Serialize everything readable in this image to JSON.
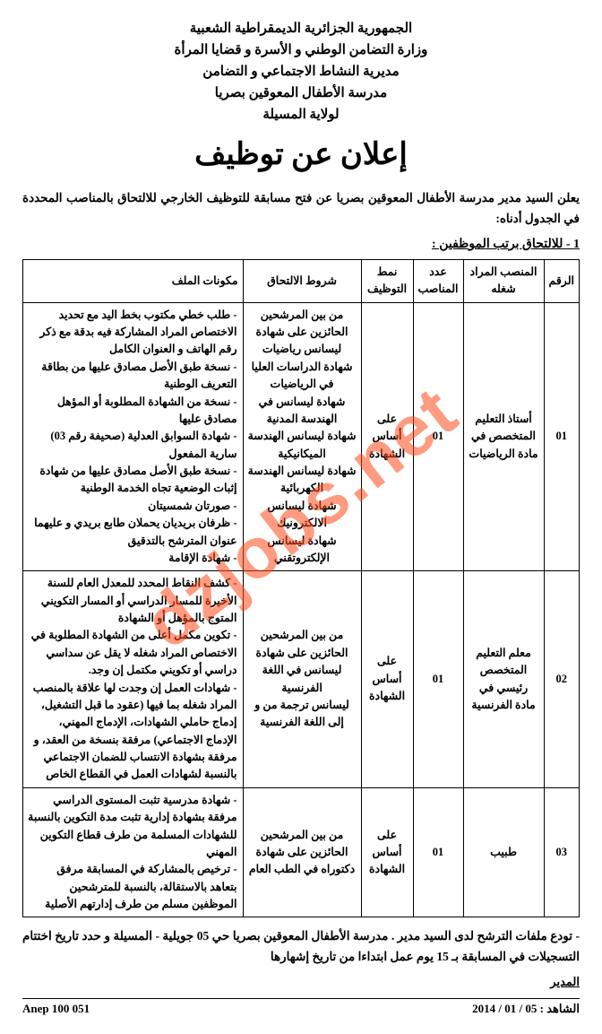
{
  "header": {
    "line1": "الجمهورية الجزائرية الديمقراطية الشعبية",
    "line2": "وزارة التضامن الوطني و الأسرة و قضايا المرأة",
    "line3": "مديرية النشاط الاجتماعي و التضامن",
    "line4": "مدرسة الأطفال المعوقين بصريا",
    "line5": "لولاية المسيلة"
  },
  "title": "إعلان عن توظيف",
  "intro": "يعلن السيد مدير مدرسة الأطفال المعوقين بصريا عن فتح مسابقة للتوظيف الخارجي للالتحاق بالمناصب المحددة في الجدول أدناه:",
  "sub_heading": "1 - للالتحاق برتب الموظفين :",
  "table": {
    "headers": {
      "num": "الرقم",
      "post": "المنصب المراد شغله",
      "count": "عدد المناصب",
      "mode": "نمط التوظيف",
      "conditions": "شروط الالتحاق",
      "documents": "مكونات الملف"
    },
    "row1": {
      "num": "01",
      "post": "أستاذ التعليم المتخصص في مادة الرياضيات",
      "count": "01",
      "mode": "على أساس الشهادة",
      "conditions": "من بين المرشحين الحائزين على شهادة ليسانس رياضيات\nشهادة الدراسات العليا في الرياضيات\nشهادة ليسانس في الهندسة المدنية\nشهادة ليسانس الهندسة الميكانيكية\nشهادة ليسانس الهندسة الكهربائية\nشهادة ليسانس الالكترونيك\nشهادة ليسانس الإلكتروتقني",
      "documents": "- طلب خطي مكتوب بخط اليد مع تحديد الاختصاص المراد المشاركة فيه بدقة مع ذكر رقم الهاتف و العنوان الكامل\n- نسخة طبق الأصل مصادق عليها من بطاقة التعريف الوطنية\n- نسخة من الشهادة المطلوبة أو المؤهل مصادق عليها\n- شهادة السوابق العدلية (صحيفة رقم 03) سارية المفعول\n- نسخة طبق الأصل مصادق عليها من شهادة إثبات الوضعية تجاه الخدمة الوطنية\n- صورتان شمسيتان\n- ظرفان بريديان يحملان طابع بريدي و عليهما عنوان المترشح بالتدقيق\n- شهادة الإقامة"
    },
    "row2": {
      "num": "02",
      "post": "معلم التعليم المتخصص رئيسي في مادة الفرنسية",
      "count": "01",
      "mode": "على أساس الشهادة",
      "conditions": "من بين المرشحين الحائزين على شهادة ليسانس في اللغة الفرنسية\nليسانس ترجمة من و إلى اللغة الفرنسية",
      "documents": "- كشف النقاط المحدد للمعدل العام للسنة الأخيرة للمسار الدراسي أو المسار التكويني المتوج بالمؤهل أو الشهادة\n- تكوين مكمل أعلى من الشهادة المطلوبة في الاختصاص المراد شغله لا يقل عن سداسي دراسي أو تكويني مكتمل إن وجد.\n- شهادات العمل إن وجدت لها علاقة بالمنصب المراد شغله بما فيها (عقود ما قبل التشغيل، إدماج حاملي الشهادات، الإدماج المهني، الإدماج الاجتماعي) مرفقة بنسخة من العقد، و مرفقة بشهادة الانتساب للضمان الاجتماعي بالنسبة لشهادات العمل في القطاع الخاص"
    },
    "row3": {
      "num": "03",
      "post": "طبيب",
      "count": "01",
      "mode": "على أساس الشهادة",
      "conditions": "من بين المرشحين الحائزين على شهادة دكتوراه في الطب العام",
      "documents": "- شهادة مدرسية تثبت المستوى الدراسي مرفقة بشهادة إدارية تثبت مدة التكوين بالنسبة للشهادات المسلمة من طرف قطاع التكوين المهني\n- ترخيص بالمشاركة في المسابقة مرفق بتعاهد بالاستقالة، بالنسبة للمترشحين الموظفين مسلم من طرف إدارتهم الأصلية"
    }
  },
  "footer_text": "- تودع ملفات الترشح لدى السيد مدير . مدرسة الأطفال المعوقين بصريا حي 05 جويلية - المسيلة و حدد تاريخ اختتام التسجيلات في المسابقة بـ 15 يوم عمل ابتداءا من تاريخ إشهارها",
  "director_label": "المدير",
  "anep": "Anep 100 051",
  "date": "الشاهد : 05 / 01 / 2014",
  "watermark": "dzjobs.net"
}
